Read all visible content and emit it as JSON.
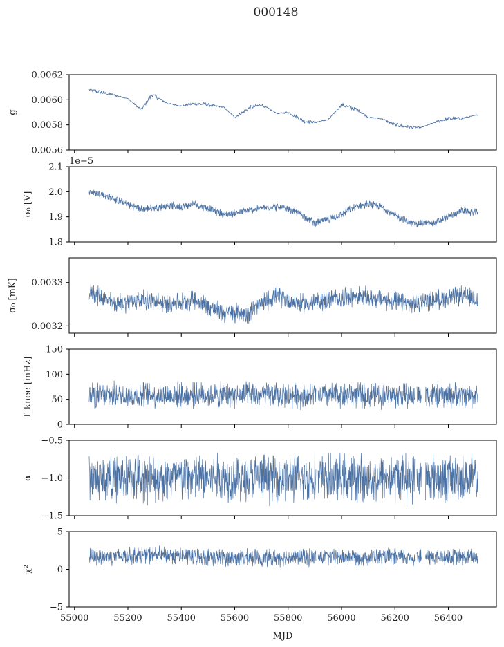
{
  "title": "000148",
  "series_color": "#4c72a4",
  "chart_data": {
    "type": "line",
    "title": "000148",
    "xlabel": "MJD",
    "xlim": [
      54980,
      56580
    ],
    "xticks": [
      55000,
      55200,
      55400,
      55600,
      55800,
      56000,
      56200,
      56400
    ],
    "data_x_range": [
      55055,
      56510
    ],
    "panels": [
      {
        "ylabel": "g",
        "ylim": [
          0.0056,
          0.0062
        ],
        "yticks": [
          "0.0056",
          "0.0058",
          "0.0060",
          "0.0062"
        ],
        "ytick_values": [
          0.0056,
          0.0058,
          0.006,
          0.0062
        ],
        "noise": 1.5e-05,
        "trend_x": [
          55055,
          55120,
          55200,
          55250,
          55290,
          55350,
          55400,
          55450,
          55500,
          55560,
          55600,
          55660,
          55700,
          55760,
          55800,
          55860,
          55900,
          55950,
          56000,
          56060,
          56100,
          56150,
          56200,
          56260,
          56300,
          56350,
          56400,
          56450,
          56510
        ],
        "trend_y": [
          0.00608,
          0.00605,
          0.00601,
          0.00592,
          0.00604,
          0.00597,
          0.00595,
          0.00597,
          0.00596,
          0.00594,
          0.00586,
          0.00594,
          0.00596,
          0.00589,
          0.0059,
          0.00583,
          0.00582,
          0.00584,
          0.00596,
          0.00592,
          0.00586,
          0.00585,
          0.0058,
          0.00578,
          0.00578,
          0.00582,
          0.00585,
          0.00585,
          0.00588
        ],
        "gaps": []
      },
      {
        "ylabel": "σ₀ [V]",
        "offset_label": "1e−5",
        "ylim": [
          1.8,
          2.1
        ],
        "yticks": [
          "1.8",
          "1.9",
          "2.0",
          "2.1"
        ],
        "ytick_values": [
          1.8,
          1.9,
          2.0,
          2.1
        ],
        "noise": 0.012,
        "trend_x": [
          55055,
          55100,
          55150,
          55200,
          55250,
          55300,
          55350,
          55400,
          55450,
          55500,
          55560,
          55600,
          55650,
          55700,
          55750,
          55800,
          55850,
          55900,
          55950,
          56000,
          56050,
          56100,
          56150,
          56200,
          56260,
          56300,
          56350,
          56400,
          56450,
          56510
        ],
        "trend_y": [
          2.0,
          1.99,
          1.97,
          1.95,
          1.93,
          1.935,
          1.945,
          1.94,
          1.95,
          1.935,
          1.91,
          1.915,
          1.925,
          1.935,
          1.94,
          1.93,
          1.91,
          1.875,
          1.89,
          1.91,
          1.94,
          1.95,
          1.94,
          1.905,
          1.875,
          1.875,
          1.875,
          1.9,
          1.925,
          1.915
        ],
        "gaps": []
      },
      {
        "ylabel": "σ₀ [mK]",
        "ylim": [
          0.003183,
          0.003357
        ],
        "yticks": [
          "0.0032",
          "0.0033"
        ],
        "ytick_values": [
          0.0032,
          0.0033
        ],
        "noise": 1.8e-05,
        "trend_x": [
          55055,
          55150,
          55250,
          55350,
          55450,
          55550,
          55650,
          55750,
          55850,
          55950,
          56050,
          56150,
          56250,
          56350,
          56450,
          56510
        ],
        "trend_y": [
          0.00328,
          0.00325,
          0.00326,
          0.00325,
          0.00326,
          0.00323,
          0.00323,
          0.00327,
          0.00325,
          0.00326,
          0.00327,
          0.00326,
          0.00325,
          0.00326,
          0.00327,
          0.00326
        ],
        "gaps": []
      },
      {
        "ylabel": "f_knee [mHz]",
        "ylim": [
          0,
          150
        ],
        "yticks": [
          "0",
          "50",
          "100",
          "150"
        ],
        "ytick_values": [
          0,
          50,
          100,
          150
        ],
        "noise": 20,
        "trend_x": [
          55055,
          56510
        ],
        "trend_y": [
          58,
          58
        ],
        "gaps": [
          [
            55905,
            55912
          ],
          [
            56275,
            56282
          ],
          [
            56300,
            56314
          ]
        ]
      },
      {
        "ylabel": "α",
        "ylim": [
          -1.5,
          -0.5
        ],
        "yticks": [
          "−1.5",
          "−1.0",
          "−0.5"
        ],
        "ytick_values": [
          -1.5,
          -1.0,
          -0.5
        ],
        "noise": 0.25,
        "trend_x": [
          55055,
          56510
        ],
        "trend_y": [
          -1.0,
          -1.0
        ],
        "gaps": [
          [
            55905,
            55912
          ],
          [
            56275,
            56282
          ],
          [
            56300,
            56314
          ]
        ]
      },
      {
        "ylabel": "χ²",
        "ylim": [
          -5,
          5
        ],
        "yticks": [
          "−5",
          "0",
          "5"
        ],
        "ytick_values": [
          -5,
          0,
          5
        ],
        "noise": 0.9,
        "trend_x": [
          55055,
          55300,
          55600,
          55900,
          56200,
          56510
        ],
        "trend_y": [
          1.6,
          1.9,
          1.5,
          1.6,
          1.6,
          1.6
        ],
        "gaps": [
          [
            55905,
            55912
          ],
          [
            56275,
            56282
          ],
          [
            56300,
            56314
          ]
        ]
      }
    ]
  }
}
